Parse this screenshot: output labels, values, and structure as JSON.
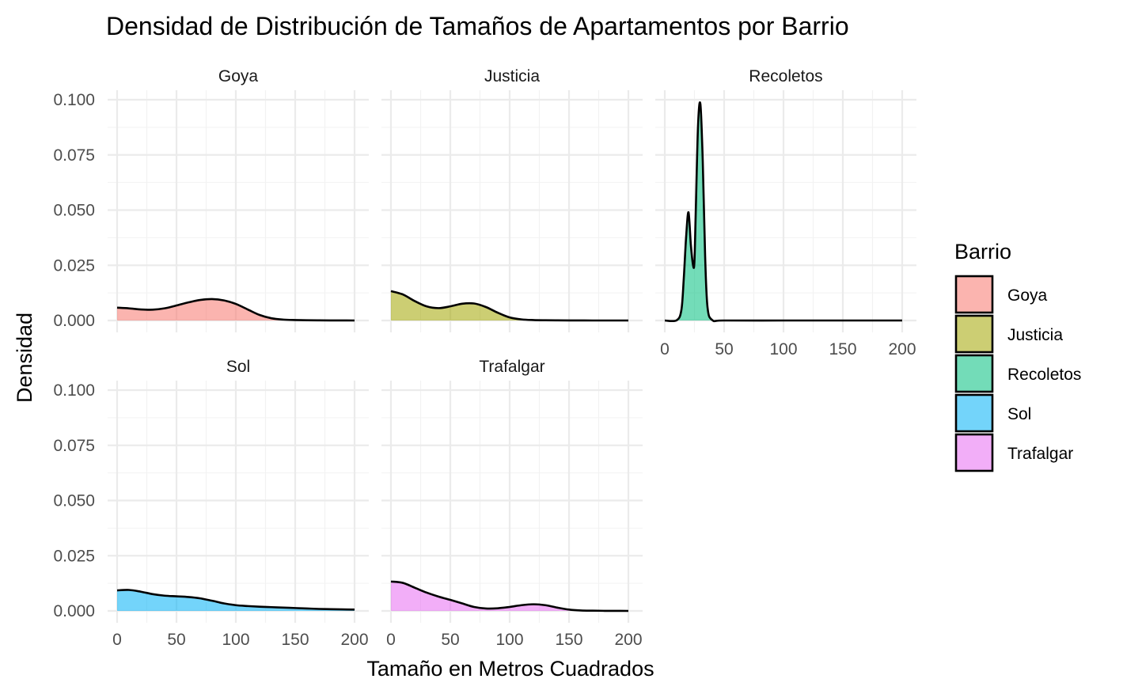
{
  "chart_data": {
    "type": "area",
    "title": "Densidad de Distribución de Tamaños de Apartamentos por Barrio",
    "xlabel": "Tamaño en Metros Cuadrados",
    "ylabel": "Densidad",
    "xlim": [
      0,
      200
    ],
    "ylim": [
      0,
      0.1
    ],
    "x_ticks": [
      "0",
      "50",
      "100",
      "150",
      "200"
    ],
    "y_ticks": [
      "0.000",
      "0.025",
      "0.050",
      "0.075",
      "0.100"
    ],
    "grid": true,
    "legend": {
      "title": "Barrio",
      "position": "right"
    },
    "series": [
      {
        "name": "Goya",
        "color": "#F8766D",
        "x": [
          0,
          10,
          20,
          30,
          40,
          50,
          60,
          70,
          80,
          90,
          100,
          110,
          120,
          130,
          140,
          150,
          160,
          170,
          180,
          190,
          200
        ],
        "values": [
          0.0058,
          0.0055,
          0.005,
          0.0049,
          0.0055,
          0.0068,
          0.0082,
          0.0093,
          0.0097,
          0.0091,
          0.0075,
          0.005,
          0.0025,
          0.001,
          0.0004,
          0.0002,
          0.0001,
          5e-05,
          2e-05,
          1e-05,
          0.0
        ]
      },
      {
        "name": "Justicia",
        "color": "#A3A500",
        "x": [
          0,
          10,
          20,
          30,
          40,
          50,
          60,
          70,
          80,
          90,
          100,
          110,
          120,
          130,
          140,
          150,
          160,
          170,
          180,
          190,
          200
        ],
        "values": [
          0.0133,
          0.0118,
          0.0088,
          0.0064,
          0.0056,
          0.0064,
          0.0076,
          0.0077,
          0.0061,
          0.0035,
          0.0014,
          0.0005,
          0.0002,
          0.0001,
          5e-05,
          2e-05,
          1e-05,
          0.0,
          0.0,
          0.0,
          0.0
        ]
      },
      {
        "name": "Recoletos",
        "color": "#00BF7D",
        "x": [
          0,
          10,
          14,
          16,
          18,
          20,
          22,
          24,
          25,
          26,
          28,
          30,
          32,
          34,
          36,
          40,
          50,
          100,
          150,
          200
        ],
        "values": [
          0.0,
          0.0001,
          0.0048,
          0.019,
          0.038,
          0.049,
          0.034,
          0.0245,
          0.027,
          0.047,
          0.088,
          0.098,
          0.072,
          0.029,
          0.006,
          0.0002,
          0.0,
          0.0,
          0.0,
          0.0
        ]
      },
      {
        "name": "Sol",
        "color": "#00B0F6",
        "x": [
          0,
          10,
          20,
          30,
          40,
          50,
          60,
          70,
          80,
          90,
          100,
          110,
          120,
          130,
          140,
          150,
          160,
          170,
          180,
          190,
          200
        ],
        "values": [
          0.0093,
          0.0095,
          0.0087,
          0.0076,
          0.0069,
          0.0066,
          0.0063,
          0.0057,
          0.0046,
          0.0034,
          0.0026,
          0.0022,
          0.0019,
          0.0017,
          0.0015,
          0.0013,
          0.0011,
          0.0009,
          0.0008,
          0.0007,
          0.0006
        ]
      },
      {
        "name": "Trafalgar",
        "color": "#E76BF3",
        "x": [
          0,
          10,
          20,
          30,
          40,
          50,
          60,
          70,
          80,
          90,
          100,
          110,
          120,
          130,
          140,
          150,
          160,
          170,
          180,
          190,
          200
        ],
        "values": [
          0.0133,
          0.0127,
          0.0105,
          0.0083,
          0.0065,
          0.005,
          0.0034,
          0.0018,
          0.0011,
          0.0012,
          0.0018,
          0.0026,
          0.003,
          0.0026,
          0.0015,
          0.0006,
          0.0002,
          0.0001,
          4e-05,
          1e-05,
          0.0
        ]
      }
    ]
  }
}
